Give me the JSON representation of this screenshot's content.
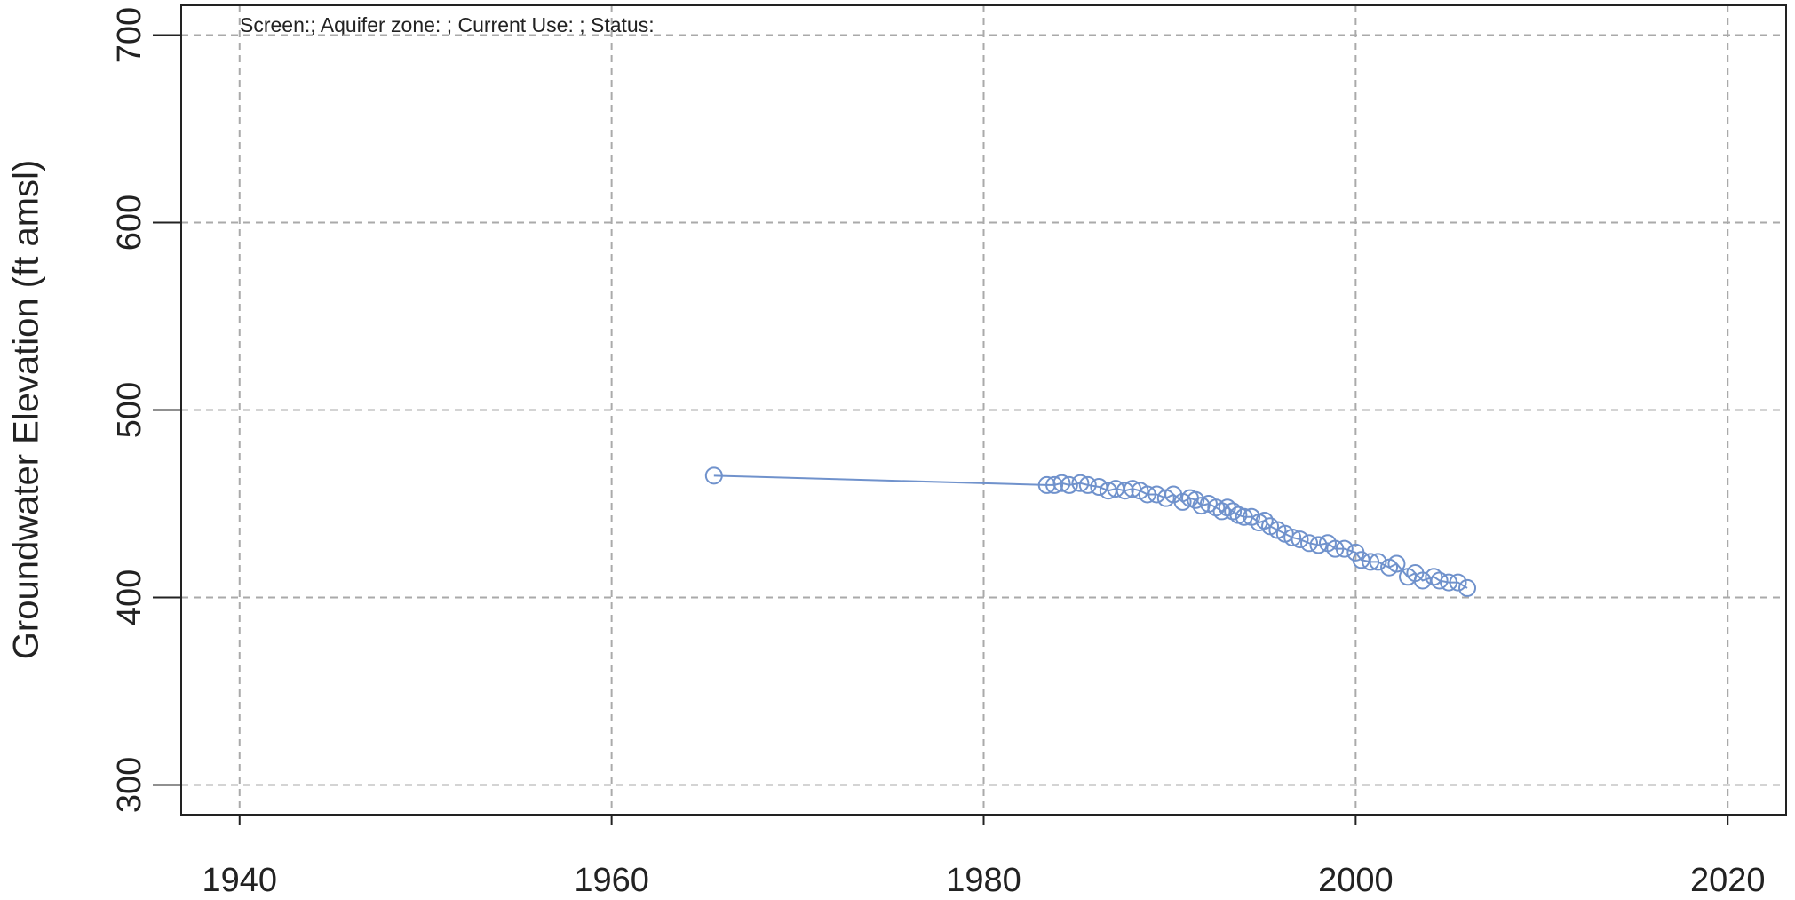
{
  "chart_data": {
    "type": "line",
    "annotation": "Screen:; Aquifer zone: ; Current Use: ; Status:",
    "y_label": "Groundwater Elevation (ft amsl)",
    "x": [
      1965.5,
      1983.4,
      1983.8,
      1984.2,
      1984.6,
      1985.2,
      1985.6,
      1986.2,
      1986.7,
      1987.1,
      1987.6,
      1988.0,
      1988.4,
      1988.8,
      1989.3,
      1989.8,
      1990.2,
      1990.7,
      1991.1,
      1991.4,
      1991.7,
      1992.1,
      1992.5,
      1992.8,
      1993.1,
      1993.4,
      1993.7,
      1994.0,
      1994.4,
      1994.8,
      1995.1,
      1995.4,
      1995.8,
      1996.2,
      1996.6,
      1997.0,
      1997.5,
      1998.0,
      1998.5,
      1998.9,
      1999.4,
      2000.0,
      2000.3,
      2000.8,
      2001.2,
      2001.8,
      2002.2,
      2002.8,
      2003.2,
      2003.6,
      2004.2,
      2004.5,
      2005.0,
      2005.5,
      2006.0
    ],
    "series": [
      {
        "name": "Groundwater Elevation",
        "color": "#7092cc",
        "values": [
          465,
          460,
          460,
          461,
          460,
          461,
          460,
          459,
          457,
          458,
          457,
          458,
          457,
          455,
          455,
          453,
          455,
          451,
          453,
          452,
          449,
          450,
          448,
          446,
          448,
          446,
          444,
          443,
          443,
          440,
          441,
          438,
          436,
          434,
          432,
          431,
          429,
          428,
          429,
          426,
          426,
          424,
          420,
          419,
          419,
          416,
          418,
          411,
          413,
          409,
          411,
          409,
          408,
          408,
          405
        ]
      }
    ],
    "xlim": [
      1936.86,
      2023.14
    ],
    "xticks": [
      1940,
      1960,
      1980,
      2000,
      2020
    ],
    "ylim": [
      284.1,
      715.9
    ],
    "yticks": [
      300,
      400,
      500,
      600,
      700
    ],
    "grid": true
  }
}
